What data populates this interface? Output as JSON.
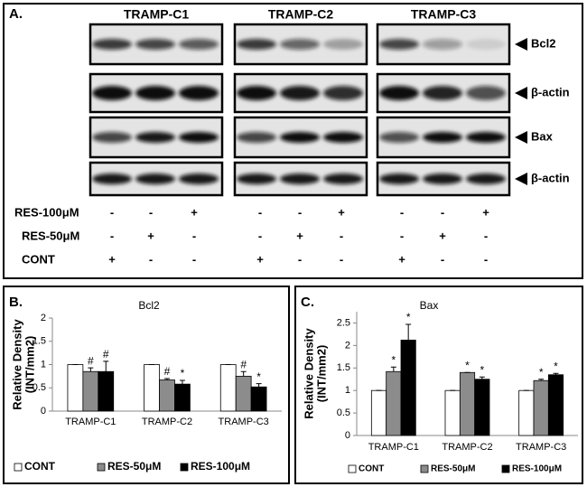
{
  "blot": {
    "panel_label": "A.",
    "cell_lines": [
      "TRAMP-C1",
      "TRAMP-C2",
      "TRAMP-C3"
    ],
    "proteins": [
      "Bcl2",
      "β-actin",
      "Bax",
      "β-actin"
    ],
    "treatments": [
      {
        "name": "RES-100μM",
        "signs": [
          "-",
          "-",
          "+",
          "-",
          "-",
          "+",
          "-",
          "-",
          "+"
        ]
      },
      {
        "name": "RES-50μM",
        "signs": [
          "-",
          "+",
          "-",
          "-",
          "+",
          "-",
          "-",
          "+",
          "-"
        ]
      },
      {
        "name": "CONT",
        "signs": [
          "+",
          "-",
          "-",
          "+",
          "-",
          "-",
          "+",
          "-",
          "-"
        ]
      }
    ]
  },
  "chart_data": [
    {
      "type": "bar",
      "panel_label": "B.",
      "title": "Bcl2",
      "ylabel": [
        "Relative Density",
        "(INT/mm2)"
      ],
      "categories": [
        "TRAMP-C1",
        "TRAMP-C2",
        "TRAMP-C3"
      ],
      "series": [
        {
          "name": "CONT",
          "color": "#ffffff",
          "values": [
            1,
            1,
            1
          ],
          "errors": [
            0,
            0,
            0
          ],
          "marks": [
            null,
            null,
            null
          ]
        },
        {
          "name": "RES-50μM",
          "color": "#8c8c8c",
          "values": [
            0.85,
            0.67,
            0.75
          ],
          "errors": [
            0.08,
            0.03,
            0.1
          ],
          "marks": [
            "#",
            "#",
            "#"
          ]
        },
        {
          "name": "RES-100μM",
          "color": "#000000",
          "values": [
            0.85,
            0.58,
            0.52
          ],
          "errors": [
            0.22,
            0.08,
            0.07
          ],
          "marks": [
            "#",
            "*",
            "*"
          ]
        }
      ],
      "ylim": [
        0,
        2
      ],
      "yticks": [
        0,
        0.5,
        1,
        1.5,
        2
      ]
    },
    {
      "type": "bar",
      "panel_label": "C.",
      "title": "Bax",
      "ylabel": [
        "Relative Density",
        "(INT/mm2)"
      ],
      "categories": [
        "TRAMP-C1",
        "TRAMP-C2",
        "TRAMP-C3"
      ],
      "series": [
        {
          "name": "CONT",
          "color": "#ffffff",
          "values": [
            1,
            1,
            1
          ],
          "errors": [
            0,
            0,
            0
          ],
          "marks": [
            null,
            null,
            null
          ]
        },
        {
          "name": "RES-50μM",
          "color": "#8c8c8c",
          "values": [
            1.42,
            1.4,
            1.22
          ],
          "errors": [
            0.1,
            0,
            0.03
          ],
          "marks": [
            "*",
            "*",
            "*"
          ]
        },
        {
          "name": "RES-100μM",
          "color": "#000000",
          "values": [
            2.12,
            1.25,
            1.35
          ],
          "errors": [
            0.35,
            0.05,
            0.03
          ],
          "marks": [
            "*",
            "*",
            "*"
          ]
        }
      ],
      "ylim": [
        0,
        2.75
      ],
      "yticks": [
        0,
        0.5,
        1,
        1.5,
        2,
        2.5
      ]
    }
  ]
}
